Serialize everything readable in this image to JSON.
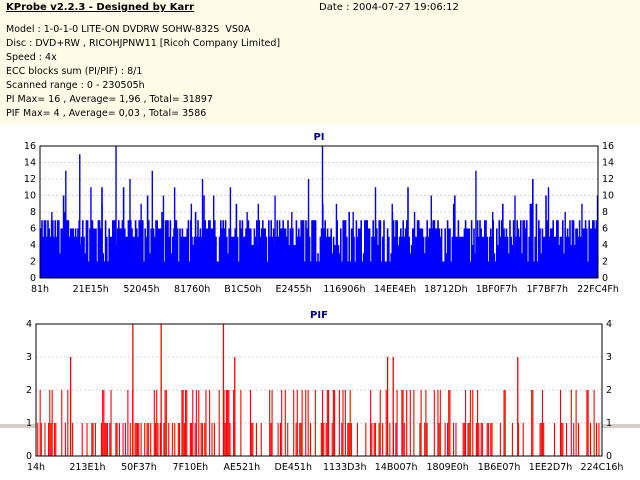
{
  "header": {
    "title": "KProbe v2.2.3 - Designed by Karr",
    "date": "Date : 2004-07-27 19:06:12",
    "lines": [
      "Model : 1-0-1-0 LITE-ON DVDRW SOHW-832S  VS0A",
      "Disc : DVD+RW , RICOHJPNW11 [Ricoh Company Limited]",
      "Speed : 4x",
      "ECC blocks sum (PI/PIF) : 8/1",
      "Scanned range : 0 - 230505h",
      "PI Max= 16 , Average= 1,96 , Total= 31897",
      "PIF Max= 4 , Average= 0,03 , Total= 3586"
    ]
  },
  "chart_data": [
    {
      "type": "bar",
      "title": "PI",
      "color": "#0000ff",
      "ylim": [
        0,
        16
      ],
      "yticks": [
        0,
        2,
        4,
        6,
        8,
        10,
        12,
        14,
        16
      ],
      "xticks": [
        "81h",
        "21E15h",
        "52045h",
        "81760h",
        "B1C50h",
        "E2455h",
        "116906h",
        "14EE4Eh",
        "18712Dh",
        "1BF0F7h",
        "1F7BF7h",
        "22FC4Fh"
      ],
      "grid": true,
      "baseline": 5,
      "spikes": [
        [
          0.02,
          8
        ],
        [
          0.045,
          13
        ],
        [
          0.07,
          15
        ],
        [
          0.09,
          11
        ],
        [
          0.11,
          9
        ],
        [
          0.135,
          16
        ],
        [
          0.16,
          12
        ],
        [
          0.18,
          9
        ],
        [
          0.2,
          13
        ],
        [
          0.22,
          10
        ],
        [
          0.24,
          11
        ],
        [
          0.27,
          9
        ],
        [
          0.29,
          12
        ],
        [
          0.31,
          10
        ],
        [
          0.34,
          11
        ],
        [
          0.37,
          8
        ],
        [
          0.39,
          9
        ],
        [
          0.42,
          10
        ],
        [
          0.45,
          8
        ],
        [
          0.48,
          12
        ],
        [
          0.505,
          16
        ],
        [
          0.53,
          9
        ],
        [
          0.56,
          8
        ],
        [
          0.6,
          11
        ],
        [
          0.63,
          9
        ],
        [
          0.67,
          8
        ],
        [
          0.7,
          10
        ],
        [
          0.74,
          9
        ],
        [
          0.78,
          13
        ],
        [
          0.81,
          8
        ],
        [
          0.85,
          10
        ],
        [
          0.88,
          9
        ],
        [
          0.91,
          11
        ],
        [
          0.94,
          8
        ],
        [
          0.97,
          9
        ]
      ]
    },
    {
      "type": "bar",
      "title": "PIF",
      "color": "#ff0000",
      "ylim": [
        0,
        4
      ],
      "yticks": [
        0,
        1,
        2,
        3,
        4
      ],
      "xticks": [
        "14h",
        "213E1h",
        "50F37h",
        "7F10Eh",
        "AE521h",
        "DE451h",
        "1133D3h",
        "14B007h",
        "1809E0h",
        "1B6E07h",
        "1EE2D7h",
        "224C16h"
      ],
      "grid": true,
      "tall": [
        [
          0.06,
          3
        ],
        [
          0.17,
          4
        ],
        [
          0.22,
          4
        ],
        [
          0.33,
          4
        ],
        [
          0.35,
          3
        ],
        [
          0.62,
          3
        ],
        [
          0.63,
          3
        ],
        [
          0.85,
          3
        ]
      ]
    }
  ]
}
